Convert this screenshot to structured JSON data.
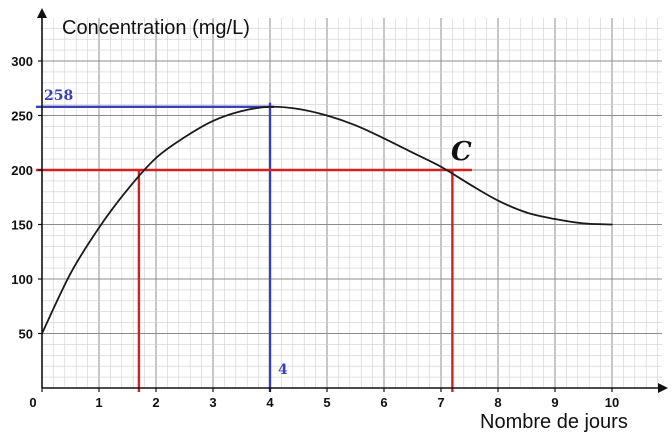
{
  "chart_data": {
    "type": "line",
    "ylabel": "Concentration (mg/L)",
    "xlabel": "Nombre de jours",
    "xlim": [
      0,
      10
    ],
    "ylim": [
      0,
      300
    ],
    "x_ticks": [
      "0",
      "1",
      "2",
      "3",
      "4",
      "5",
      "6",
      "7",
      "8",
      "9",
      "10"
    ],
    "y_ticks": [
      "50",
      "100",
      "150",
      "200",
      "250",
      "300"
    ],
    "grid": true,
    "series": [
      {
        "x": [
          0,
          0.5,
          1,
          1.5,
          2,
          2.5,
          3,
          3.5,
          4,
          4.5,
          5,
          5.5,
          6,
          6.5,
          7,
          7.5,
          8,
          8.5,
          9,
          9.5,
          10
        ],
        "y": [
          50,
          105,
          147,
          182,
          211,
          230,
          245,
          254,
          258,
          256,
          250,
          241,
          229,
          216,
          203,
          187,
          172,
          161,
          155,
          151,
          150
        ]
      }
    ],
    "annotations": {
      "max_label": "258",
      "max_x_label": "4",
      "point_label": "C",
      "max_point": [
        4,
        258
      ],
      "threshold_y": 200,
      "crossings_x": [
        1.7,
        7.2
      ]
    },
    "colors": {
      "curve": "#1a1a1a",
      "blue_guides": "#3a3fb5",
      "red_guides": "#d42020",
      "major_grid": "#8c8c8c",
      "minor_grid": "#cfcfcf"
    }
  }
}
